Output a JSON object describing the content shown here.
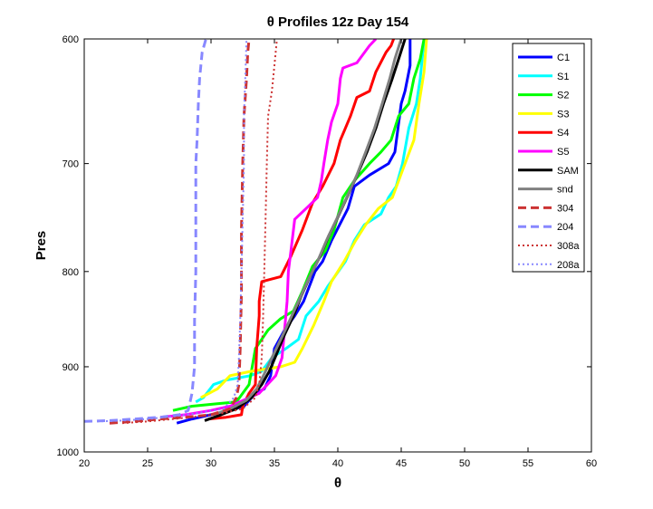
{
  "chart_data": {
    "type": "line",
    "title": "θ Profiles 12z Day 154",
    "xlabel": "θ",
    "ylabel": "Pres",
    "xlim": [
      20,
      60
    ],
    "ylim": [
      1000,
      600
    ],
    "y_scale": "log",
    "y_reversed": true,
    "x_ticks": [
      20,
      25,
      30,
      35,
      40,
      45,
      50,
      55,
      60
    ],
    "y_ticks": [
      600,
      700,
      800,
      900,
      1000
    ],
    "grid": false,
    "legend_position": "top-right",
    "series": [
      {
        "name": "C1",
        "color": "#0000ff",
        "style": "solid",
        "width": 3,
        "points": [
          [
            27.3,
            965
          ],
          [
            28.5,
            960
          ],
          [
            30,
            955
          ],
          [
            31.5,
            950
          ],
          [
            32.6,
            945
          ],
          [
            33.5,
            930
          ],
          [
            34.2,
            925
          ],
          [
            34.7,
            910
          ],
          [
            35,
            880
          ],
          [
            35.8,
            860
          ],
          [
            36.6,
            845
          ],
          [
            37.3,
            830
          ],
          [
            38.2,
            800
          ],
          [
            38.8,
            790
          ],
          [
            39.5,
            770
          ],
          [
            40.8,
            740
          ],
          [
            41.3,
            720
          ],
          [
            42.5,
            710
          ],
          [
            44,
            700
          ],
          [
            44.5,
            690
          ],
          [
            45,
            650
          ],
          [
            45.3,
            640
          ],
          [
            45.7,
            620
          ],
          [
            45.7,
            600
          ]
        ]
      },
      {
        "name": "S1",
        "color": "#00ffff",
        "style": "solid",
        "width": 3,
        "points": [
          [
            28.8,
            940
          ],
          [
            29.4,
            935
          ],
          [
            30.2,
            920
          ],
          [
            31.2,
            915
          ],
          [
            33.1,
            910
          ],
          [
            34,
            905
          ],
          [
            34.8,
            890
          ],
          [
            35.9,
            880
          ],
          [
            36.9,
            870
          ],
          [
            37.5,
            845
          ],
          [
            38.5,
            830
          ],
          [
            39.2,
            815
          ],
          [
            40.6,
            790
          ],
          [
            41.3,
            770
          ],
          [
            42.1,
            755
          ],
          [
            43.4,
            745
          ],
          [
            44,
            730
          ],
          [
            44.6,
            720
          ],
          [
            45.1,
            700
          ],
          [
            45.6,
            670
          ],
          [
            46.2,
            650
          ],
          [
            46.5,
            630
          ],
          [
            46.7,
            610
          ],
          [
            47,
            600
          ]
        ]
      },
      {
        "name": "S2",
        "color": "#00ff00",
        "style": "solid",
        "width": 3,
        "points": [
          [
            27,
            950
          ],
          [
            28.5,
            945
          ],
          [
            30.5,
            942
          ],
          [
            32,
            940
          ],
          [
            33,
            920
          ],
          [
            33.5,
            880
          ],
          [
            34.5,
            860
          ],
          [
            35.5,
            848
          ],
          [
            36.5,
            840
          ],
          [
            37.2,
            820
          ],
          [
            38,
            795
          ],
          [
            39,
            780
          ],
          [
            39.7,
            760
          ],
          [
            40.4,
            730
          ],
          [
            41.3,
            715
          ],
          [
            42.5,
            700
          ],
          [
            43.4,
            690
          ],
          [
            44.2,
            680
          ],
          [
            44.8,
            660
          ],
          [
            45.6,
            650
          ],
          [
            46,
            630
          ],
          [
            46.5,
            615
          ],
          [
            46.8,
            600
          ]
        ]
      },
      {
        "name": "S3",
        "color": "#ffff00",
        "style": "solid",
        "width": 3,
        "points": [
          [
            29.2,
            935
          ],
          [
            30.5,
            925
          ],
          [
            31.5,
            910
          ],
          [
            33.2,
            905
          ],
          [
            35.5,
            900
          ],
          [
            36.6,
            895
          ],
          [
            37.2,
            880
          ],
          [
            38.1,
            855
          ],
          [
            38.9,
            830
          ],
          [
            39.5,
            810
          ],
          [
            40.5,
            790
          ],
          [
            41.4,
            770
          ],
          [
            42.2,
            755
          ],
          [
            43.2,
            740
          ],
          [
            44.3,
            730
          ],
          [
            44.8,
            715
          ],
          [
            45.3,
            700
          ],
          [
            46,
            680
          ],
          [
            46.4,
            650
          ],
          [
            46.8,
            625
          ],
          [
            47,
            600
          ]
        ]
      },
      {
        "name": "S4",
        "color": "#ff0000",
        "style": "solid",
        "width": 3,
        "points": [
          [
            29.8,
            960
          ],
          [
            31.2,
            958
          ],
          [
            32.4,
            955
          ],
          [
            32.5,
            945
          ],
          [
            33,
            930
          ],
          [
            33.5,
            920
          ],
          [
            33.6,
            880
          ],
          [
            33.8,
            845
          ],
          [
            33.8,
            830
          ],
          [
            34,
            810
          ],
          [
            35.5,
            805
          ],
          [
            36.3,
            785
          ],
          [
            37.2,
            760
          ],
          [
            38,
            735
          ],
          [
            38.8,
            720
          ],
          [
            39.7,
            700
          ],
          [
            40.2,
            680
          ],
          [
            41,
            660
          ],
          [
            41.5,
            645
          ],
          [
            42.5,
            640
          ],
          [
            43,
            625
          ],
          [
            43.8,
            610
          ],
          [
            44.2,
            605
          ],
          [
            44.4,
            600
          ]
        ]
      },
      {
        "name": "S5",
        "color": "#ff00ff",
        "style": "solid",
        "width": 3,
        "points": [
          [
            26,
            958
          ],
          [
            28,
            955
          ],
          [
            30,
            950
          ],
          [
            31.5,
            945
          ],
          [
            33.8,
            930
          ],
          [
            35.1,
            910
          ],
          [
            35.6,
            890
          ],
          [
            35.8,
            860
          ],
          [
            36,
            830
          ],
          [
            36.1,
            800
          ],
          [
            36.3,
            780
          ],
          [
            36.6,
            750
          ],
          [
            37.5,
            740
          ],
          [
            38.4,
            730
          ],
          [
            38.7,
            715
          ],
          [
            38.9,
            700
          ],
          [
            39.2,
            680
          ],
          [
            39.5,
            665
          ],
          [
            40,
            650
          ],
          [
            40.2,
            630
          ],
          [
            40.4,
            622
          ],
          [
            41.5,
            618
          ],
          [
            42.5,
            605
          ],
          [
            43,
            600
          ]
        ]
      },
      {
        "name": "SAM",
        "color": "#000000",
        "style": "solid",
        "width": 3,
        "points": [
          [
            29.5,
            962
          ],
          [
            30.8,
            955
          ],
          [
            32,
            948
          ],
          [
            33.2,
            935
          ],
          [
            34,
            920
          ],
          [
            34.6,
            905
          ],
          [
            35.2,
            885
          ],
          [
            35.8,
            865
          ],
          [
            36.5,
            845
          ],
          [
            37.1,
            825
          ],
          [
            37.8,
            805
          ],
          [
            38.6,
            785
          ],
          [
            39.3,
            765
          ],
          [
            40,
            748
          ],
          [
            40.8,
            728
          ],
          [
            41.6,
            708
          ],
          [
            42.3,
            690
          ],
          [
            43,
            670
          ],
          [
            43.6,
            650
          ],
          [
            44.3,
            630
          ],
          [
            44.8,
            615
          ],
          [
            45.3,
            600
          ]
        ]
      },
      {
        "name": "snd",
        "color": "#808080",
        "style": "solid",
        "width": 3,
        "points": [
          [
            30.2,
            955
          ],
          [
            31.5,
            948
          ],
          [
            32.8,
            938
          ],
          [
            33.6,
            925
          ],
          [
            34.2,
            908
          ],
          [
            34.8,
            890
          ],
          [
            35.5,
            870
          ],
          [
            36.2,
            850
          ],
          [
            36.9,
            830
          ],
          [
            37.6,
            810
          ],
          [
            38.4,
            790
          ],
          [
            39.1,
            770
          ],
          [
            39.9,
            750
          ],
          [
            40.7,
            730
          ],
          [
            41.5,
            710
          ],
          [
            42.2,
            690
          ],
          [
            42.9,
            670
          ],
          [
            43.5,
            650
          ],
          [
            44.1,
            630
          ],
          [
            44.5,
            615
          ],
          [
            45,
            600
          ]
        ]
      },
      {
        "name": "304",
        "color": "#cc3333",
        "style": "dashed",
        "width": 3,
        "points": [
          [
            22,
            965
          ],
          [
            24,
            963
          ],
          [
            26,
            960
          ],
          [
            28,
            958
          ],
          [
            30,
            955
          ],
          [
            31.5,
            948
          ],
          [
            32,
            935
          ],
          [
            32.2,
            920
          ],
          [
            32.3,
            880
          ],
          [
            32.4,
            820
          ],
          [
            32.4,
            760
          ],
          [
            32.5,
            700
          ],
          [
            32.6,
            660
          ],
          [
            32.8,
            630
          ],
          [
            32.9,
            610
          ],
          [
            33,
            600
          ]
        ]
      },
      {
        "name": "204",
        "color": "#8888ff",
        "style": "dashed",
        "width": 3,
        "points": [
          [
            20,
            963
          ],
          [
            22,
            962
          ],
          [
            24,
            960
          ],
          [
            26,
            958
          ],
          [
            27.5,
            955
          ],
          [
            28.2,
            950
          ],
          [
            28.5,
            930
          ],
          [
            28.7,
            900
          ],
          [
            28.7,
            850
          ],
          [
            28.8,
            800
          ],
          [
            28.8,
            750
          ],
          [
            28.8,
            700
          ],
          [
            28.9,
            680
          ],
          [
            29,
            650
          ],
          [
            29.1,
            630
          ],
          [
            29.3,
            610
          ],
          [
            29.6,
            600
          ]
        ]
      },
      {
        "name": "308a",
        "color": "#cc3333",
        "style": "dotted",
        "width": 2,
        "points": [
          [
            23,
            965
          ],
          [
            25,
            963
          ],
          [
            27,
            960
          ],
          [
            29,
            957
          ],
          [
            31,
            953
          ],
          [
            32.5,
            948
          ],
          [
            33.5,
            935
          ],
          [
            33.8,
            920
          ],
          [
            34,
            890
          ],
          [
            34.1,
            850
          ],
          [
            34.2,
            800
          ],
          [
            34.3,
            750
          ],
          [
            34.4,
            700
          ],
          [
            34.5,
            660
          ],
          [
            34.8,
            640
          ],
          [
            35,
            620
          ],
          [
            35.2,
            600
          ]
        ]
      },
      {
        "name": "208a",
        "color": "#8888ff",
        "style": "dotted",
        "width": 2,
        "points": [
          [
            21,
            963
          ],
          [
            23,
            962
          ],
          [
            25,
            960
          ],
          [
            27,
            957
          ],
          [
            29,
            953
          ],
          [
            31,
            948
          ],
          [
            31.8,
            935
          ],
          [
            32.1,
            920
          ],
          [
            32.2,
            890
          ],
          [
            32.3,
            850
          ],
          [
            32.4,
            800
          ],
          [
            32.5,
            750
          ],
          [
            32.6,
            700
          ],
          [
            32.6,
            660
          ],
          [
            32.7,
            630
          ],
          [
            32.8,
            600
          ]
        ]
      }
    ]
  }
}
